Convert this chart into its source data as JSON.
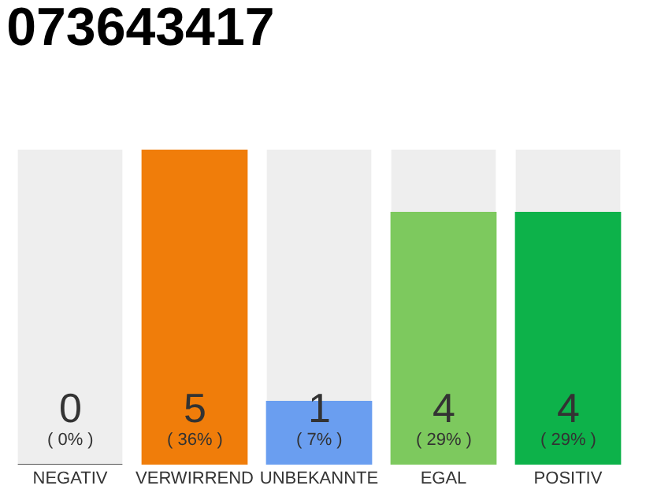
{
  "chart_data": {
    "type": "bar",
    "title": "073643417",
    "categories": [
      "NEGATIV",
      "VERWIRREND",
      "UNBEKANNTE",
      "EGAL",
      "POSITIV"
    ],
    "values": [
      0,
      5,
      1,
      4,
      4
    ],
    "colors": [
      "#555555",
      "#f07d0a",
      "#6a9ef0",
      "#7dc95e",
      "#0db24a"
    ],
    "tick_labels": "x",
    "value_labels": [
      "0\n( 0% )",
      "5\n( 36% )",
      "1\n( 7% )",
      "4\n( 29% )",
      "4\n( 29% )"
    ]
  }
}
